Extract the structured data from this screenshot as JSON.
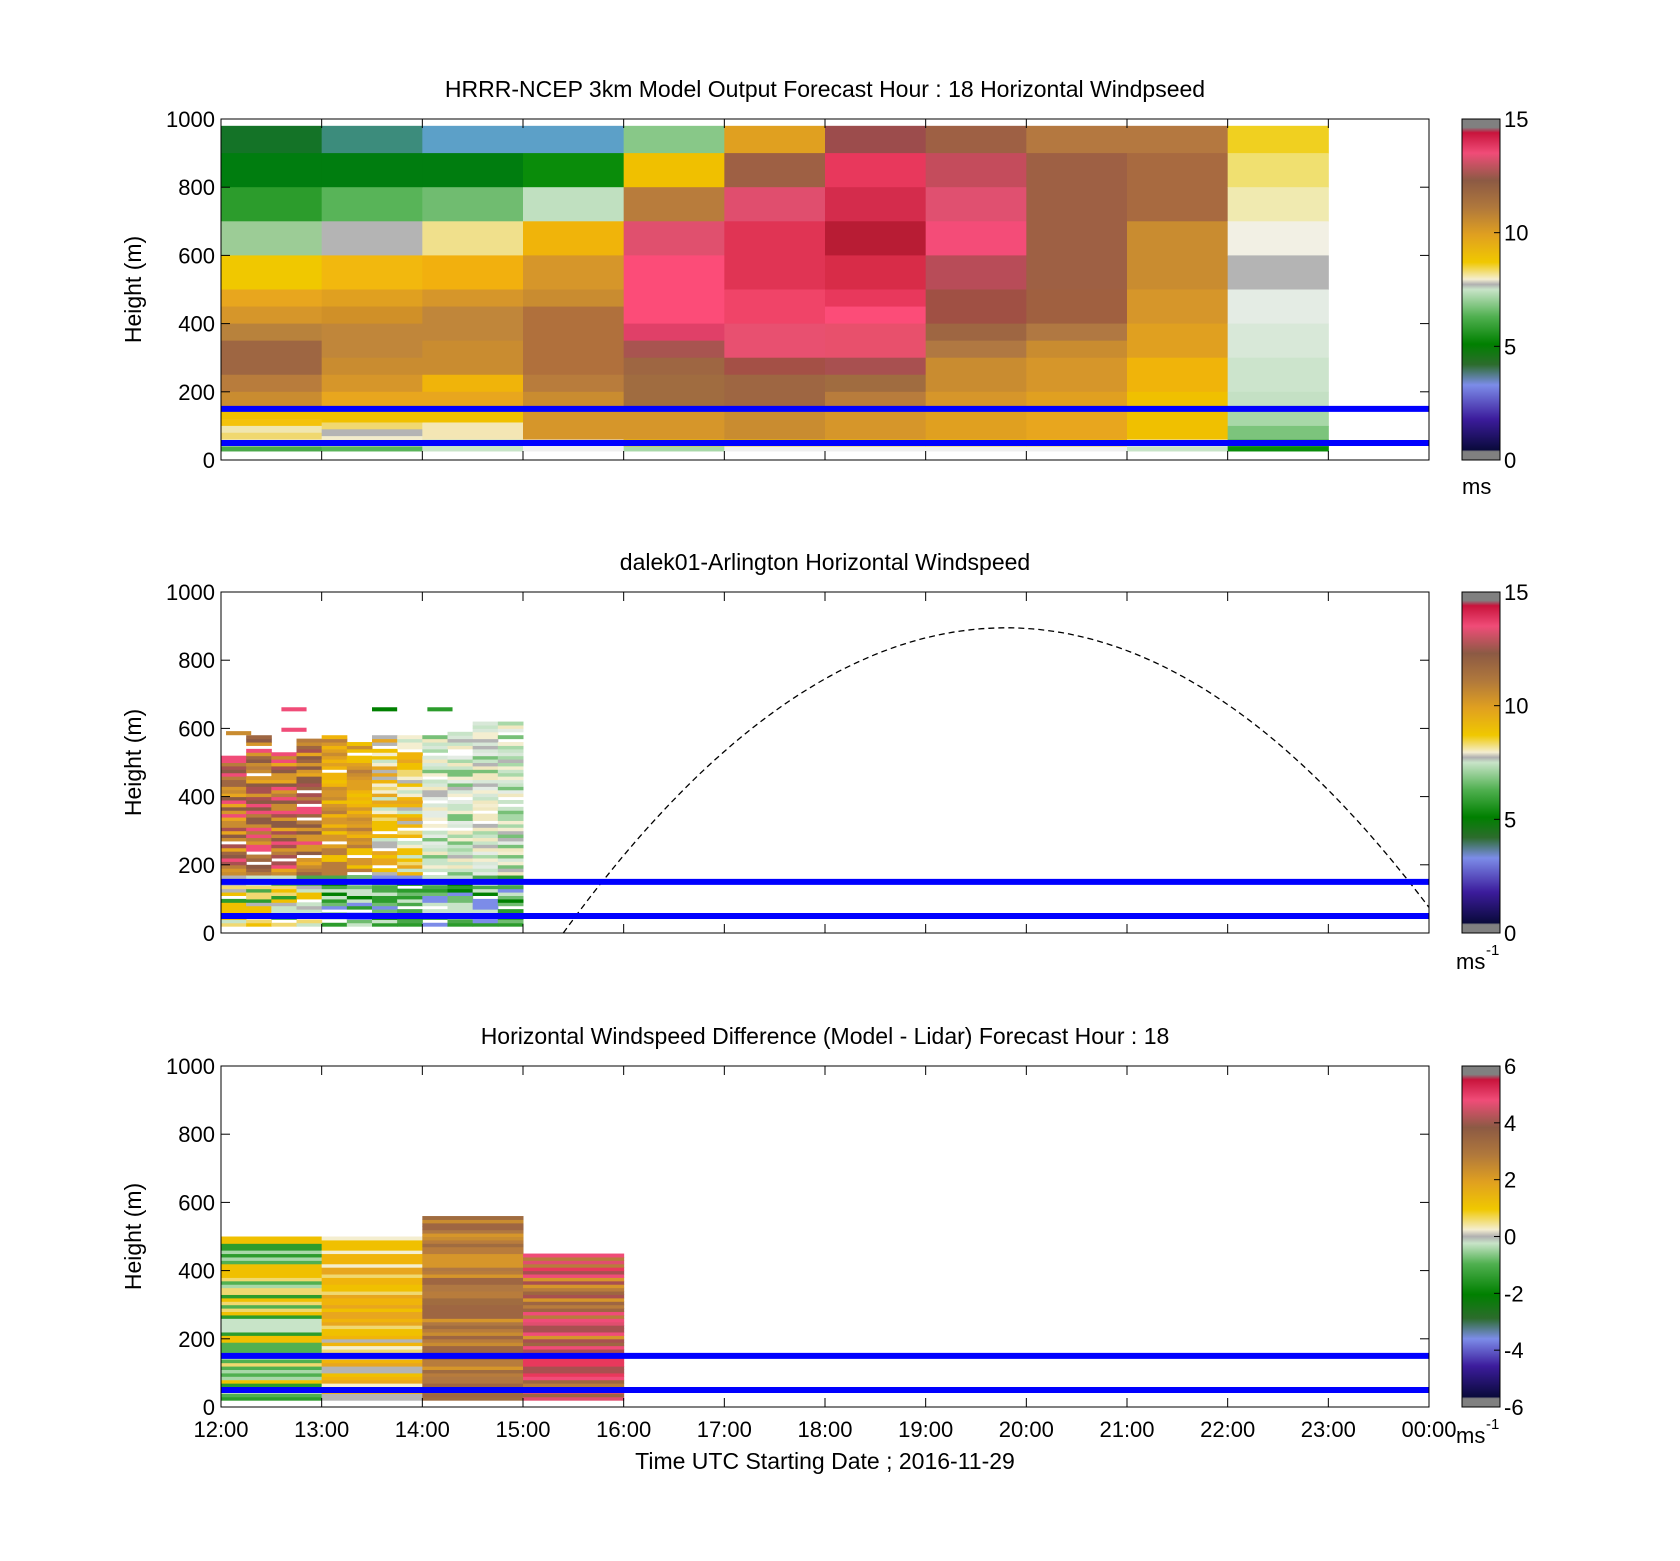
{
  "chart_data": [
    {
      "type": "heatmap",
      "title": "HRRR-NCEP 3km Model Output   Forecast Hour : 18 Horizontal Windpseed",
      "ylabel": "Height (m)",
      "xlabel": "",
      "ylim": [
        0,
        1000
      ],
      "xlim": [
        12,
        24
      ],
      "yticks": [
        "0",
        "200",
        "400",
        "600",
        "800",
        "1000"
      ],
      "xticks": [],
      "hlines": [
        150,
        50
      ],
      "colorbar": {
        "min": 0,
        "max": 15,
        "ticks": [
          "0",
          "5",
          "10",
          "15"
        ],
        "unit": "ms",
        "unit_sup": "",
        "palette": "speed"
      },
      "columns": [
        {
          "t0": 12,
          "t1": 13,
          "levels": [
            [
              980,
              800,
              "#147327"
            ],
            [
              900,
              800,
              "#007d0f"
            ],
            [
              800,
              700,
              "#2c9c2c"
            ],
            [
              700,
              600,
              "#9ccc96"
            ],
            [
              600,
              500,
              "#f0c800"
            ],
            [
              500,
              450,
              "#e8a61e"
            ],
            [
              450,
              400,
              "#d6962a"
            ],
            [
              400,
              350,
              "#b8823c"
            ],
            [
              350,
              250,
              "#9e6642"
            ],
            [
              250,
              200,
              "#b87c3c"
            ],
            [
              200,
              150,
              "#c98c30"
            ],
            [
              150,
              120,
              "#f0c000"
            ],
            [
              120,
              100,
              "#f4c20c"
            ],
            [
              100,
              80,
              "#f0e6b0"
            ],
            [
              80,
              60,
              "#f0d870"
            ],
            [
              60,
              40,
              "#f0f0e8"
            ],
            [
              40,
              25,
              "#4aa84a"
            ],
            [
              25,
              0,
              "#ffffff"
            ]
          ]
        },
        {
          "t0": 13,
          "t1": 14,
          "levels": [
            [
              980,
              900,
              "#3c8c7c"
            ],
            [
              900,
              800,
              "#007d0f"
            ],
            [
              800,
              700,
              "#58b458"
            ],
            [
              700,
              600,
              "#b4b4b4"
            ],
            [
              600,
              500,
              "#f2b80e"
            ],
            [
              500,
              450,
              "#e0a020"
            ],
            [
              450,
              400,
              "#d09028"
            ],
            [
              400,
              300,
              "#c0863a"
            ],
            [
              300,
              250,
              "#c98c30"
            ],
            [
              250,
              200,
              "#d6962a"
            ],
            [
              200,
              150,
              "#e8a61e"
            ],
            [
              150,
              110,
              "#f0c000"
            ],
            [
              110,
              90,
              "#f0d870"
            ],
            [
              90,
              70,
              "#b4b4b4"
            ],
            [
              70,
              40,
              "#f2eccc"
            ],
            [
              40,
              25,
              "#5ab45a"
            ],
            [
              25,
              0,
              "#ffffff"
            ]
          ]
        },
        {
          "t0": 14,
          "t1": 15,
          "levels": [
            [
              980,
              900,
              "#5ca0c8"
            ],
            [
              900,
              800,
              "#007d0f"
            ],
            [
              800,
              700,
              "#70bc70"
            ],
            [
              700,
              600,
              "#f0e08c"
            ],
            [
              600,
              500,
              "#f2b00e"
            ],
            [
              500,
              450,
              "#d6962a"
            ],
            [
              450,
              350,
              "#c0863a"
            ],
            [
              350,
              250,
              "#c98c30"
            ],
            [
              250,
              200,
              "#f0b40a"
            ],
            [
              200,
              150,
              "#e8a61e"
            ],
            [
              150,
              110,
              "#f0c000"
            ],
            [
              110,
              60,
              "#f4e6b4"
            ],
            [
              60,
              25,
              "#c8e4c8"
            ],
            [
              25,
              0,
              "#ffffff"
            ]
          ]
        },
        {
          "t0": 15,
          "t1": 16,
          "levels": [
            [
              980,
              900,
              "#5ca0c8"
            ],
            [
              900,
              800,
              "#0a8c0a"
            ],
            [
              800,
              700,
              "#c0e0c0"
            ],
            [
              700,
              600,
              "#f0b40a"
            ],
            [
              600,
              500,
              "#d6962a"
            ],
            [
              500,
              450,
              "#c98c30"
            ],
            [
              450,
              250,
              "#b0703c"
            ],
            [
              250,
              200,
              "#b87c3c"
            ],
            [
              200,
              150,
              "#c98c30"
            ],
            [
              150,
              60,
              "#d6962a"
            ],
            [
              60,
              25,
              "#f0f0f0"
            ],
            [
              25,
              0,
              "#ffffff"
            ]
          ]
        },
        {
          "t0": 16,
          "t1": 17,
          "levels": [
            [
              980,
              900,
              "#88c888"
            ],
            [
              900,
              800,
              "#f0c000"
            ],
            [
              800,
              700,
              "#b87c3c"
            ],
            [
              700,
              600,
              "#e0506e"
            ],
            [
              600,
              450,
              "#fc4c78"
            ],
            [
              450,
              400,
              "#fc4c78"
            ],
            [
              400,
              350,
              "#e04068"
            ],
            [
              350,
              300,
              "#a85450"
            ],
            [
              300,
              250,
              "#9e6642"
            ],
            [
              250,
              150,
              "#a06c40"
            ],
            [
              150,
              60,
              "#d6962a"
            ],
            [
              60,
              40,
              "#f0c000"
            ],
            [
              40,
              25,
              "#a8d8a8"
            ],
            [
              25,
              0,
              "#ffffff"
            ]
          ]
        },
        {
          "t0": 17,
          "t1": 18,
          "levels": [
            [
              980,
              900,
              "#e0a020"
            ],
            [
              900,
              800,
              "#9e6044"
            ],
            [
              800,
              700,
              "#e04e6e"
            ],
            [
              700,
              500,
              "#e03454"
            ],
            [
              500,
              400,
              "#f04468"
            ],
            [
              400,
              300,
              "#e85070"
            ],
            [
              300,
              250,
              "#a45046"
            ],
            [
              250,
              150,
              "#9e6642"
            ],
            [
              150,
              60,
              "#c98c30"
            ],
            [
              60,
              40,
              "#f0c000"
            ],
            [
              40,
              25,
              "#f0f0f0"
            ],
            [
              25,
              0,
              "#ffffff"
            ]
          ]
        },
        {
          "t0": 18,
          "t1": 19,
          "levels": [
            [
              980,
              900,
              "#9c4c4c"
            ],
            [
              900,
              800,
              "#e8385c"
            ],
            [
              800,
              700,
              "#d42c4c"
            ],
            [
              700,
              600,
              "#b81c34"
            ],
            [
              600,
              500,
              "#d82c48"
            ],
            [
              500,
              450,
              "#e8385c"
            ],
            [
              450,
              400,
              "#fc4c78"
            ],
            [
              400,
              300,
              "#e8506c"
            ],
            [
              300,
              250,
              "#a85050"
            ],
            [
              250,
              200,
              "#a06c40"
            ],
            [
              200,
              150,
              "#b87c3c"
            ],
            [
              150,
              60,
              "#d6962a"
            ],
            [
              60,
              40,
              "#f0c000"
            ],
            [
              40,
              25,
              "#f0f0f0"
            ],
            [
              25,
              0,
              "#ffffff"
            ]
          ]
        },
        {
          "t0": 19,
          "t1": 20,
          "levels": [
            [
              980,
              900,
              "#9e6044"
            ],
            [
              900,
              800,
              "#c44c5c"
            ],
            [
              800,
              700,
              "#e05070"
            ],
            [
              700,
              600,
              "#f44c78"
            ],
            [
              600,
              500,
              "#b84c58"
            ],
            [
              500,
              400,
              "#a05044"
            ],
            [
              400,
              350,
              "#9e6642"
            ],
            [
              350,
              300,
              "#b07842"
            ],
            [
              300,
              200,
              "#c98c30"
            ],
            [
              200,
              150,
              "#d6962a"
            ],
            [
              150,
              60,
              "#e0a020"
            ],
            [
              60,
              40,
              "#f0c000"
            ],
            [
              40,
              25,
              "#f0f0f0"
            ],
            [
              25,
              0,
              "#ffffff"
            ]
          ]
        },
        {
          "t0": 20,
          "t1": 21,
          "levels": [
            [
              980,
              900,
              "#b47840"
            ],
            [
              900,
              500,
              "#9e6044"
            ],
            [
              500,
              400,
              "#a06040"
            ],
            [
              400,
              350,
              "#b07842"
            ],
            [
              350,
              300,
              "#c98c30"
            ],
            [
              300,
              200,
              "#d6962a"
            ],
            [
              200,
              150,
              "#e0a020"
            ],
            [
              150,
              60,
              "#e8a61e"
            ],
            [
              60,
              40,
              "#f0c000"
            ],
            [
              40,
              25,
              "#f0f0f0"
            ],
            [
              25,
              0,
              "#ffffff"
            ]
          ]
        },
        {
          "t0": 21,
          "t1": 22,
          "levels": [
            [
              980,
              900,
              "#b47840"
            ],
            [
              900,
              700,
              "#a86a40"
            ],
            [
              700,
              500,
              "#c98c30"
            ],
            [
              500,
              400,
              "#d6962a"
            ],
            [
              400,
              300,
              "#e0a020"
            ],
            [
              300,
              200,
              "#f0b40a"
            ],
            [
              200,
              150,
              "#f0c000"
            ],
            [
              150,
              60,
              "#f0c000"
            ],
            [
              60,
              40,
              "#f0f0e8"
            ],
            [
              40,
              25,
              "#c8e4c8"
            ],
            [
              25,
              0,
              "#ffffff"
            ]
          ]
        },
        {
          "t0": 22,
          "t1": 23,
          "levels": [
            [
              980,
              900,
              "#f0d020"
            ],
            [
              900,
              800,
              "#f0e070"
            ],
            [
              800,
              700,
              "#f0eab0"
            ],
            [
              700,
              600,
              "#f2f0e4"
            ],
            [
              600,
              500,
              "#b4b4b4"
            ],
            [
              500,
              400,
              "#e4ece4"
            ],
            [
              400,
              300,
              "#d8e8d8"
            ],
            [
              300,
              200,
              "#cce4cc"
            ],
            [
              200,
              150,
              "#c4e0c4"
            ],
            [
              150,
              100,
              "#a8d8a8"
            ],
            [
              100,
              60,
              "#7cc47c"
            ],
            [
              60,
              40,
              "#4aa84a"
            ],
            [
              40,
              25,
              "#0a8c0a"
            ],
            [
              25,
              0,
              "#ffffff"
            ]
          ]
        }
      ]
    },
    {
      "type": "heatmap",
      "title": "dalek01-Arlington  Horizontal Windspeed",
      "ylabel": "Height (m)",
      "xlabel": "",
      "ylim": [
        0,
        1000
      ],
      "xlim": [
        12,
        24
      ],
      "yticks": [
        "0",
        "200",
        "400",
        "600",
        "800",
        "1000"
      ],
      "xticks": [],
      "hlines": [
        150,
        50
      ],
      "colorbar": {
        "min": 0,
        "max": 15,
        "ticks": [
          "0",
          "5",
          "10",
          "15"
        ],
        "unit": "ms",
        "unit_sup": "-1",
        "palette": "speed"
      },
      "curve": {
        "style": "dashed",
        "t_start": 15.4,
        "t_peak": 19.8,
        "t_end": 24,
        "y_peak": 895,
        "y_end": 75
      },
      "profile_bins": [
        {
          "t0": 12.0,
          "t1": 12.25,
          "top": 520,
          "palette": "warm"
        },
        {
          "t0": 12.25,
          "t1": 12.5,
          "top": 580,
          "palette": "warm"
        },
        {
          "t0": 12.5,
          "t1": 12.75,
          "top": 530,
          "palette": "warm"
        },
        {
          "t0": 12.75,
          "t1": 13.0,
          "top": 580,
          "palette": "warm"
        },
        {
          "t0": 13.0,
          "t1": 13.25,
          "top": 580,
          "palette": "amber"
        },
        {
          "t0": 13.25,
          "t1": 13.5,
          "top": 570,
          "palette": "amber"
        },
        {
          "t0": 13.5,
          "t1": 13.75,
          "top": 580,
          "palette": "gold"
        },
        {
          "t0": 13.75,
          "t1": 14.0,
          "top": 580,
          "palette": "gold"
        },
        {
          "t0": 14.0,
          "t1": 14.25,
          "top": 580,
          "palette": "pale"
        },
        {
          "t0": 14.25,
          "t1": 14.5,
          "top": 590,
          "palette": "pale"
        },
        {
          "t0": 14.5,
          "t1": 14.75,
          "top": 620,
          "palette": "pale"
        },
        {
          "t0": 14.75,
          "t1": 15.0,
          "top": 615,
          "palette": "pale"
        }
      ]
    },
    {
      "type": "heatmap",
      "title": "Horizontal Windspeed Difference (Model - Lidar) Forecast Hour : 18",
      "ylabel": "Height (m)",
      "xlabel": "Time UTC  Starting Date ; 2016-11-29",
      "ylim": [
        0,
        1000
      ],
      "xlim": [
        12,
        24
      ],
      "yticks": [
        "0",
        "200",
        "400",
        "600",
        "800",
        "1000"
      ],
      "xticks": [
        "12:00",
        "13:00",
        "14:00",
        "15:00",
        "16:00",
        "17:00",
        "18:00",
        "19:00",
        "20:00",
        "21:00",
        "22:00",
        "23:00",
        "00:00"
      ],
      "hlines": [
        150,
        50
      ],
      "colorbar": {
        "min": -6,
        "max": 6,
        "ticks": [
          "-6",
          "-4",
          "-2",
          "0",
          "2",
          "4",
          "6"
        ],
        "unit": "ms",
        "unit_sup": "-1",
        "palette": "diff"
      },
      "profile_bins": [
        {
          "t0": 12,
          "t1": 13,
          "top": 500,
          "palette": "greenyellow"
        },
        {
          "t0": 13,
          "t1": 14,
          "top": 500,
          "palette": "yellow"
        },
        {
          "t0": 14,
          "t1": 15,
          "top": 560,
          "palette": "brown"
        },
        {
          "t0": 15,
          "t1": 16,
          "top": 450,
          "palette": "brownpink"
        }
      ]
    }
  ]
}
